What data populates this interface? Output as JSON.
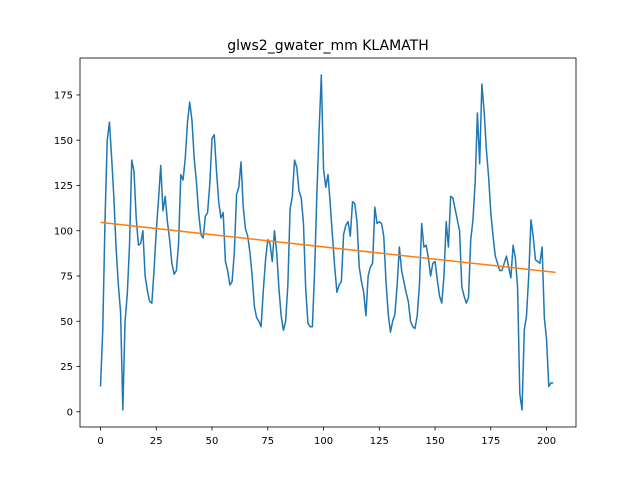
{
  "chart_data": {
    "type": "line",
    "title": "glws2_gwater_mm KLAMATH",
    "xlabel": "",
    "ylabel": "",
    "xlim": [
      -9.2,
      213.2
    ],
    "ylim": [
      -8.4,
      195.4
    ],
    "x_ticks": [
      0,
      25,
      50,
      75,
      100,
      125,
      150,
      175,
      200
    ],
    "y_ticks": [
      0,
      25,
      50,
      75,
      100,
      125,
      150,
      175
    ],
    "grid": false,
    "legend": "none",
    "series": [
      {
        "color": "#1f77b4",
        "x_start": 0,
        "x_step": 1,
        "values": [
          14,
          45,
          105,
          150,
          160,
          140,
          118,
          90,
          70,
          55,
          1,
          50,
          65,
          92,
          139,
          133,
          107,
          92,
          93,
          100,
          75,
          67,
          61,
          60,
          78,
          100,
          117,
          136,
          111,
          119,
          105,
          95,
          82,
          76,
          78,
          93,
          131,
          128,
          140,
          160,
          171,
          161,
          140,
          127,
          110,
          98,
          96,
          108,
          110,
          126,
          151,
          153,
          133,
          116,
          107,
          110,
          83,
          78,
          70,
          72,
          88,
          120,
          124,
          138,
          113,
          101,
          97,
          88,
          75,
          58,
          52,
          50,
          47,
          67,
          84,
          95,
          93,
          83,
          100,
          88,
          68,
          53,
          45,
          50,
          70,
          112,
          119,
          139,
          135,
          122,
          118,
          104,
          68,
          49,
          47,
          47,
          78,
          120,
          155,
          186,
          134,
          124,
          131,
          115,
          97,
          80,
          66,
          70,
          72,
          98,
          103,
          105,
          97,
          116,
          115,
          105,
          80,
          72,
          66,
          53,
          75,
          80,
          82,
          113,
          104,
          105,
          104,
          97,
          72,
          54,
          44,
          50,
          54,
          70,
          91,
          78,
          72,
          66,
          61,
          50,
          47,
          46,
          53,
          70,
          104,
          91,
          92,
          85,
          75,
          82,
          83,
          73,
          64,
          60,
          75,
          105,
          91,
          119,
          118,
          112,
          106,
          100,
          69,
          64,
          60,
          63,
          95,
          106,
          127,
          165,
          137,
          181,
          166,
          145,
          130,
          110,
          97,
          86,
          82,
          78,
          78,
          82,
          86,
          80,
          74,
          92,
          85,
          69,
          10,
          1,
          45,
          53,
          75,
          106,
          97,
          84,
          83,
          82,
          91,
          52,
          40,
          14,
          16,
          16
        ]
      },
      {
        "color": "#ff7f0e",
        "x": [
          0,
          204
        ],
        "values": [
          104.6,
          77.0
        ]
      }
    ]
  }
}
